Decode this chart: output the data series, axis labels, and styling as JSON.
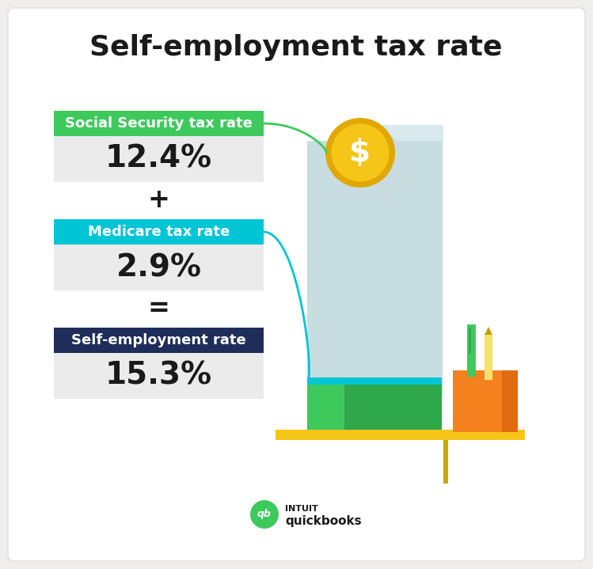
{
  "title": "Self-employment tax rate",
  "title_fontsize": 26,
  "background_color": "#f0eeeb",
  "white_bg": "#ffffff",
  "labels": [
    "Social Security tax rate",
    "Medicare tax rate",
    "Self-employment rate"
  ],
  "label_colors": [
    "#3ec95c",
    "#00c5d4",
    "#1e2d5a"
  ],
  "values": [
    "12.4%",
    "2.9%",
    "15.3%"
  ],
  "operators": [
    "+",
    "="
  ],
  "value_fontsize": 28,
  "label_fontsize": 13,
  "operator_fontsize": 24,
  "green_line_color": "#3ec95c",
  "cyan_line_color": "#00c5d4",
  "coin_color": "#f5c518",
  "coin_outer": "#e0a800",
  "coin_shadow": "#c8dce0",
  "light_blue_rect": "#c8dde0",
  "light_blue_rect2": "#d8eaed",
  "teal_stripe": "#00c5d4",
  "green_box": "#3ec95c",
  "dark_green_box": "#2ea84a",
  "orange_box": "#f5821f",
  "pencil_holder_dark": "#e06b10",
  "shelf_color": "#f5c518",
  "shelf_leg_color": "#c8a800",
  "pen_green": "#3ec95c",
  "pen_green_dark": "#2ea84a",
  "pen_yellow": "#f5e070",
  "pen_yellow_dark": "#c0a000",
  "logo_green": "#3ec95c",
  "value_bg": "#ebebeb",
  "card_edge": "#dddddd"
}
